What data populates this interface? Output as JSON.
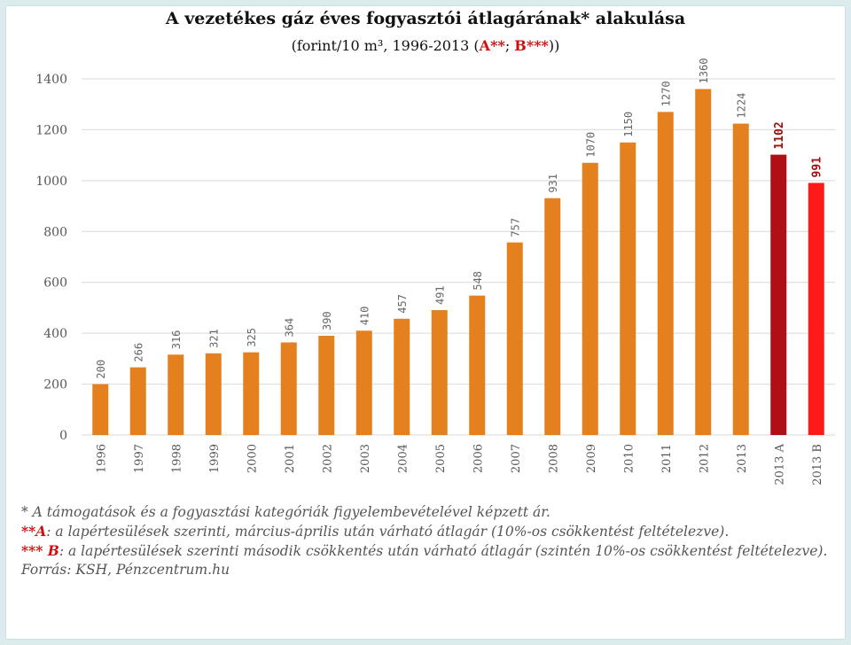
{
  "title": "A vezetékes gáz éves fogyasztói átlagárának* alakulása",
  "subtitle": {
    "prefix": "(forint/10 m³, 1996-2013 (",
    "a": "A**",
    "sep": "; ",
    "b": "B***",
    "suffix": "))"
  },
  "chart_data": {
    "type": "bar",
    "categories": [
      "1996",
      "1997",
      "1998",
      "1999",
      "2000",
      "2001",
      "2002",
      "2003",
      "2004",
      "2005",
      "2006",
      "2007",
      "2008",
      "2009",
      "2010",
      "2011",
      "2012",
      "2013",
      "2013 A",
      "2013 B"
    ],
    "values": [
      200,
      266,
      316,
      321,
      325,
      364,
      390,
      410,
      457,
      491,
      548,
      757,
      931,
      1070,
      1150,
      1270,
      1360,
      1224,
      1102,
      991
    ],
    "data_labels": [
      "200",
      "266",
      "316",
      "321",
      "325",
      "364",
      "390",
      "410",
      "457",
      "491",
      "548",
      "757",
      "931",
      "1070",
      "1150",
      "1270",
      "1360",
      "1224",
      "1102",
      "991"
    ],
    "ylim": [
      0,
      1400
    ],
    "yticks": [
      "0",
      "200",
      "400",
      "600",
      "800",
      "1000",
      "1200",
      "1400"
    ],
    "grid": true,
    "colors": {
      "default": "#e5801e",
      "2013 A": "#b01015",
      "2013 B": "#ff1a1a",
      "highlight_label": "#a01010"
    }
  },
  "notes": {
    "n1": "* A támogatások és a fogyasztási kategóriák figyelembevételével képzett ár.",
    "n2_mark": "**A",
    "n2_text": ": a lapértesülések szerinti, március-április után várható átlagár  (10%-os csökkentést feltételezve).",
    "n3_mark": "*** B",
    "n3_text": ": a lapértesülések szerinti második csökkentés után várható átlagár  (szintén 10%-os csökkentést feltételezve).",
    "source": "Forrás: KSH, Pénzcentrum.hu"
  }
}
